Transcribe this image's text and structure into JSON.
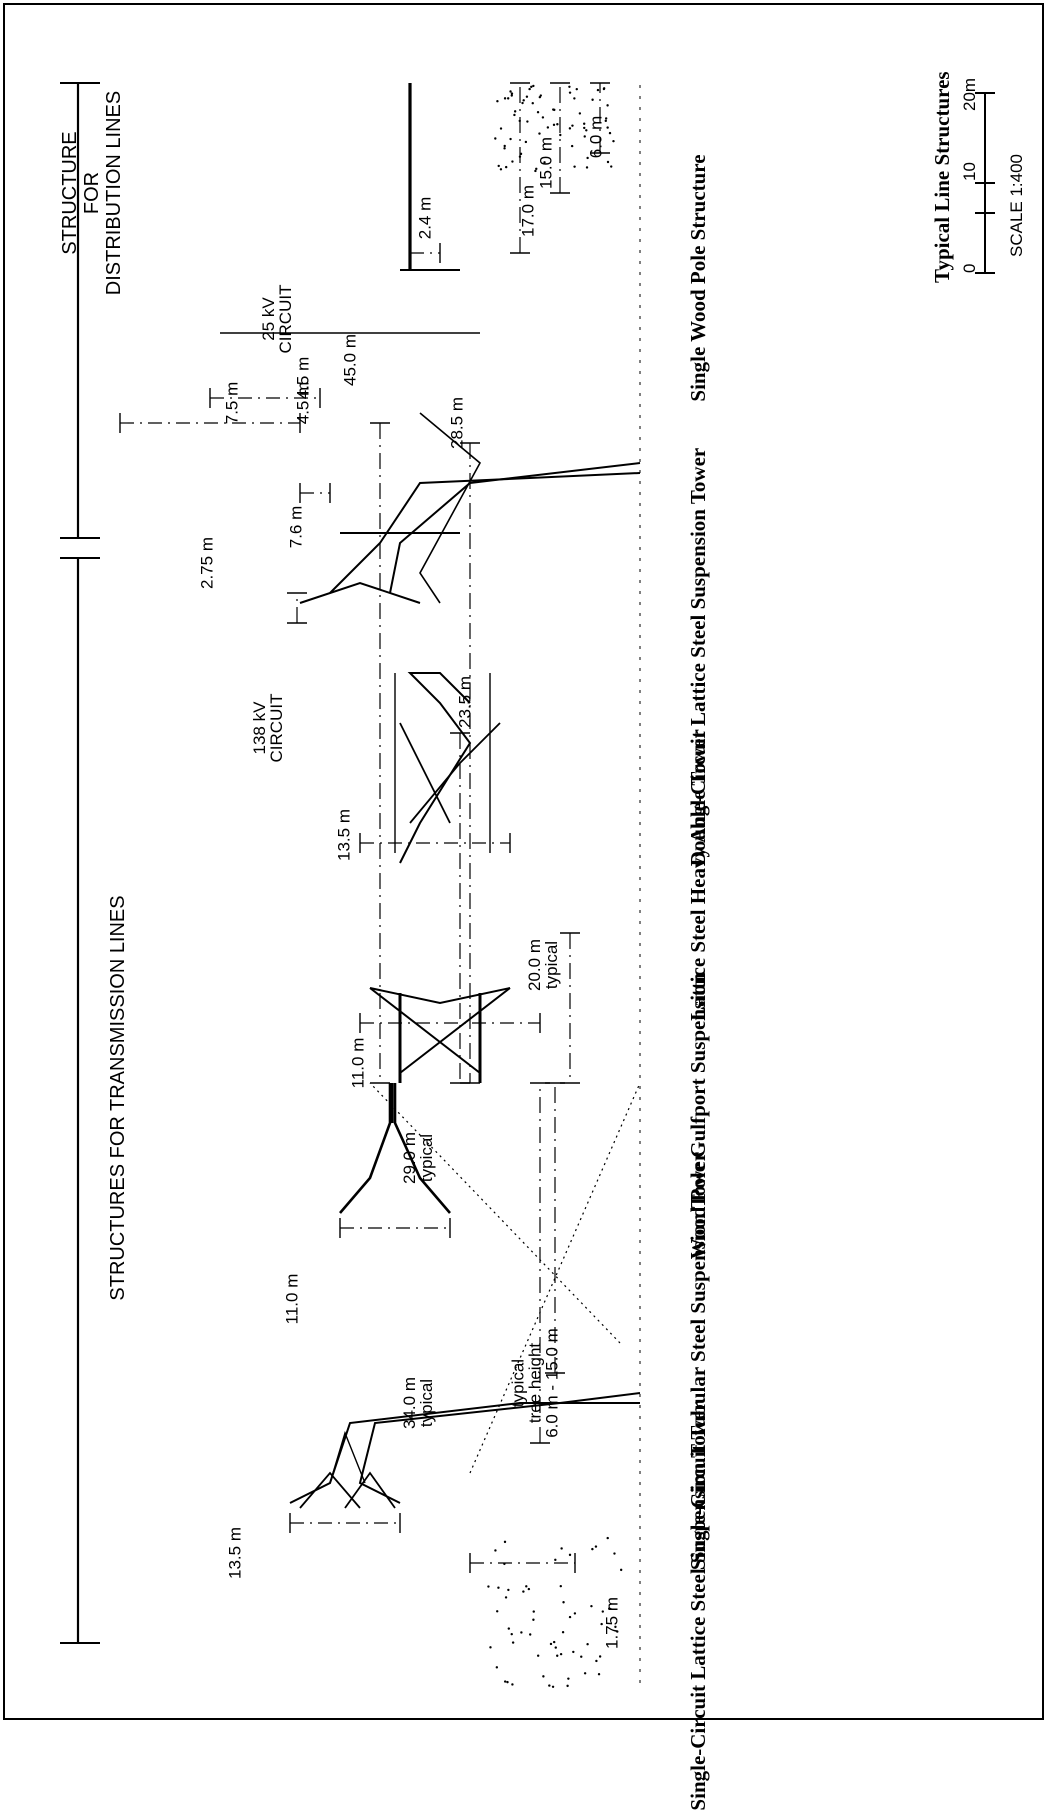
{
  "sections": {
    "transmission": "STRUCTURES FOR TRANSMISSION LINES",
    "distribution": [
      "STRUCTURE",
      "FOR",
      "DISTRIBUTION LINES"
    ]
  },
  "structures": [
    "Single-Circuit Lattice Steel Suspension Tower",
    "Single-Circuit Tubular Steel Suspension Tower",
    "Wood Pole Gulfport Suspension",
    "Lattice Steel Heavy Angle Tower",
    "Double-Circuit Lattice Steel Suspension Tower",
    "Single Wood Pole Structure"
  ],
  "dimensions": {
    "slst_width": "13.5 m",
    "slst_height": [
      "34.0 m",
      "typical"
    ],
    "tree": [
      "typical",
      "tree height",
      "6.0 m - 15.0 m"
    ],
    "tree_offset": "1.75 m",
    "tubular_width": "11.0 m",
    "tubular_height": [
      "29.0 m",
      "typical"
    ],
    "gulfport_width": "11.0 m",
    "gulfport_height": [
      "20.0 m",
      "typical"
    ],
    "angle_width": "13.5 m",
    "angle_height": "23.5 m",
    "circuit_138": [
      "138 kV",
      "CIRCUIT"
    ],
    "circuit_25": [
      "25 kV",
      "CIRCUIT"
    ],
    "dc_arm": "2.75 m",
    "dc_span": "7.6 m",
    "dc_top": "7.5 m",
    "dc_spacing_1": "4.5 m",
    "dc_spacing_2": "4.5 m",
    "dc_total": "45.0 m",
    "dc_lower": "28.5 m",
    "pole_top": "2.4 m",
    "pole_height": "17.0 m",
    "pole_tree_height": "15.0 m",
    "pole_tree_low": "6.0 m"
  },
  "legend": {
    "title": "Typical Line Structures",
    "ticks": [
      "0",
      "10",
      "20m"
    ],
    "scale": "SCALE 1:400"
  }
}
